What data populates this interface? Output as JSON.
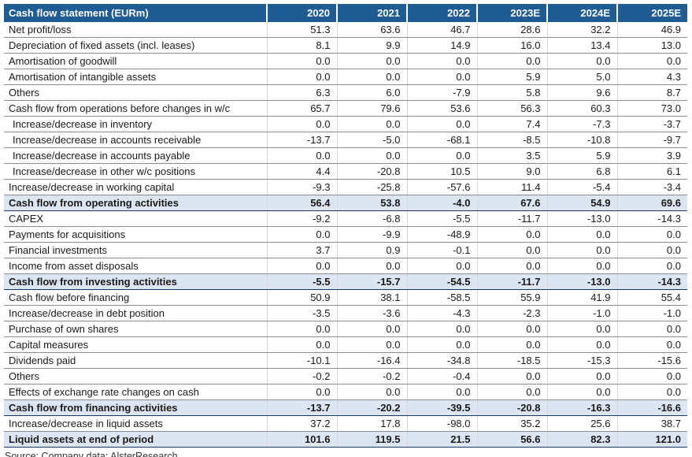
{
  "colors": {
    "header_bg": "#1F5C94",
    "header_text": "#FFFFFF",
    "subtotal_bg": "#DCE6F2",
    "subtotal_border": "#17375E",
    "row_border": "#8C8C8C",
    "col_separator": "#D9D9D9",
    "text": "#1A1A1A"
  },
  "table": {
    "header": {
      "label": "Cash flow statement (EURm)",
      "years": [
        "2020",
        "2021",
        "2022",
        "2023E",
        "2024E",
        "2025E"
      ]
    },
    "rows": [
      {
        "label": "Net profit/loss",
        "style": "normal",
        "values": [
          "51.3",
          "63.6",
          "46.7",
          "28.6",
          "32.2",
          "46.9"
        ]
      },
      {
        "label": "Depreciation of fixed assets (incl. leases)",
        "style": "normal",
        "values": [
          "8.1",
          "9.9",
          "14.9",
          "16.0",
          "13.4",
          "13.0"
        ]
      },
      {
        "label": "Amortisation of goodwill",
        "style": "normal",
        "values": [
          "0.0",
          "0.0",
          "0.0",
          "0.0",
          "0.0",
          "0.0"
        ]
      },
      {
        "label": "Amortisation of intangible assets",
        "style": "normal",
        "values": [
          "0.0",
          "0.0",
          "0.0",
          "5.9",
          "5.0",
          "4.3"
        ]
      },
      {
        "label": "Others",
        "style": "normal",
        "values": [
          "6.3",
          "6.0",
          "-7.9",
          "5.8",
          "9.6",
          "8.7"
        ]
      },
      {
        "label": "Cash flow from operations before changes in w/c",
        "style": "normal",
        "values": [
          "65.7",
          "79.6",
          "53.6",
          "56.3",
          "60.3",
          "73.0"
        ]
      },
      {
        "label": "Increase/decrease in inventory",
        "style": "indent",
        "values": [
          "0.0",
          "0.0",
          "0.0",
          "7.4",
          "-7.3",
          "-3.7"
        ]
      },
      {
        "label": "Increase/decrease in accounts receivable",
        "style": "indent",
        "values": [
          "-13.7",
          "-5.0",
          "-68.1",
          "-8.5",
          "-10.8",
          "-9.7"
        ]
      },
      {
        "label": "Increase/decrease in accounts payable",
        "style": "indent",
        "values": [
          "0.0",
          "0.0",
          "0.0",
          "3.5",
          "5.9",
          "3.9"
        ]
      },
      {
        "label": "Increase/decrease in other w/c positions",
        "style": "indent",
        "values": [
          "4.4",
          "-20.8",
          "10.5",
          "9.0",
          "6.8",
          "6.1"
        ]
      },
      {
        "label": "Increase/decrease in working capital",
        "style": "normal",
        "values": [
          "-9.3",
          "-25.8",
          "-57.6",
          "11.4",
          "-5.4",
          "-3.4"
        ]
      },
      {
        "label": "Cash flow from operating activities",
        "style": "subtotal",
        "values": [
          "56.4",
          "53.8",
          "-4.0",
          "67.6",
          "54.9",
          "69.6"
        ]
      },
      {
        "label": "CAPEX",
        "style": "normal",
        "values": [
          "-9.2",
          "-6.8",
          "-5.5",
          "-11.7",
          "-13.0",
          "-14.3"
        ]
      },
      {
        "label": "Payments for acquisitions",
        "style": "normal",
        "values": [
          "0.0",
          "-9.9",
          "-48.9",
          "0.0",
          "0.0",
          "0.0"
        ]
      },
      {
        "label": "Financial investments",
        "style": "normal",
        "values": [
          "3.7",
          "0.9",
          "-0.1",
          "0.0",
          "0.0",
          "0.0"
        ]
      },
      {
        "label": "Income from asset disposals",
        "style": "normal",
        "values": [
          "0.0",
          "0.0",
          "0.0",
          "0.0",
          "0.0",
          "0.0"
        ]
      },
      {
        "label": "Cash flow from investing activities",
        "style": "subtotal",
        "values": [
          "-5.5",
          "-15.7",
          "-54.5",
          "-11.7",
          "-13.0",
          "-14.3"
        ]
      },
      {
        "label": "Cash flow before financing",
        "style": "normal",
        "values": [
          "50.9",
          "38.1",
          "-58.5",
          "55.9",
          "41.9",
          "55.4"
        ]
      },
      {
        "label": "Increase/decrease in debt position",
        "style": "normal",
        "values": [
          "-3.5",
          "-3.6",
          "-4.3",
          "-2.3",
          "-1.0",
          "-1.0"
        ]
      },
      {
        "label": "Purchase of own shares",
        "style": "normal",
        "values": [
          "0.0",
          "0.0",
          "0.0",
          "0.0",
          "0.0",
          "0.0"
        ]
      },
      {
        "label": "Capital measures",
        "style": "normal",
        "values": [
          "0.0",
          "0.0",
          "0.0",
          "0.0",
          "0.0",
          "0.0"
        ]
      },
      {
        "label": "Dividends paid",
        "style": "normal",
        "values": [
          "-10.1",
          "-16.4",
          "-34.8",
          "-18.5",
          "-15.3",
          "-15.6"
        ]
      },
      {
        "label": "Others",
        "style": "normal",
        "values": [
          "-0.2",
          "-0.2",
          "-0.4",
          "0.0",
          "0.0",
          "0.0"
        ]
      },
      {
        "label": "Effects of exchange rate changes on cash",
        "style": "normal",
        "values": [
          "0.0",
          "0.0",
          "0.0",
          "0.0",
          "0.0",
          "0.0"
        ]
      },
      {
        "label": "Cash flow from financing activities",
        "style": "subtotal",
        "values": [
          "-13.7",
          "-20.2",
          "-39.5",
          "-20.8",
          "-16.3",
          "-16.6"
        ]
      },
      {
        "label": "Increase/decrease in liquid assets",
        "style": "normal",
        "values": [
          "37.2",
          "17.8",
          "-98.0",
          "35.2",
          "25.6",
          "38.7"
        ]
      },
      {
        "label": "Liquid assets at end of period",
        "style": "subtotal",
        "values": [
          "101.6",
          "119.5",
          "21.5",
          "56.6",
          "82.3",
          "121.0"
        ]
      }
    ],
    "source": "Source: Company data; AlsterResearch"
  }
}
